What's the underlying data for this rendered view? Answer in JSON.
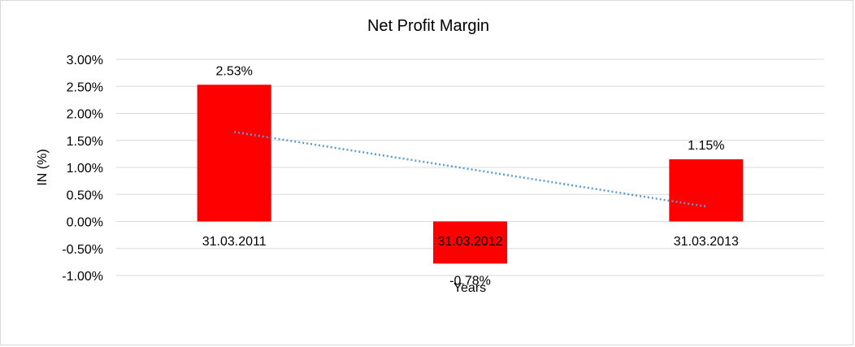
{
  "chart_data": {
    "type": "bar",
    "title": "Net Profit Margin",
    "xlabel": "Years",
    "ylabel": "IN (%)",
    "categories": [
      "31.03.2011",
      "31.03.2012",
      "31.03.2013"
    ],
    "values": [
      2.53,
      -0.78,
      1.15
    ],
    "data_labels": [
      "2.53%",
      "-0.78%",
      "1.15%"
    ],
    "yticks": [
      3.0,
      2.5,
      2.0,
      1.5,
      1.0,
      0.5,
      0.0,
      -0.5,
      -1.0
    ],
    "ytick_labels": [
      "3.00%",
      "2.50%",
      "2.00%",
      "1.50%",
      "1.00%",
      "0.50%",
      "0.00%",
      "-0.50%",
      "-1.00%"
    ],
    "ylim": [
      -1.0,
      3.0
    ],
    "grid": true,
    "legend": "none",
    "trendline": {
      "type": "linear",
      "style": "dotted",
      "color": "#5b9bd5"
    },
    "colors": {
      "bar": "#ff0000",
      "grid": "#d9d9d9"
    }
  }
}
